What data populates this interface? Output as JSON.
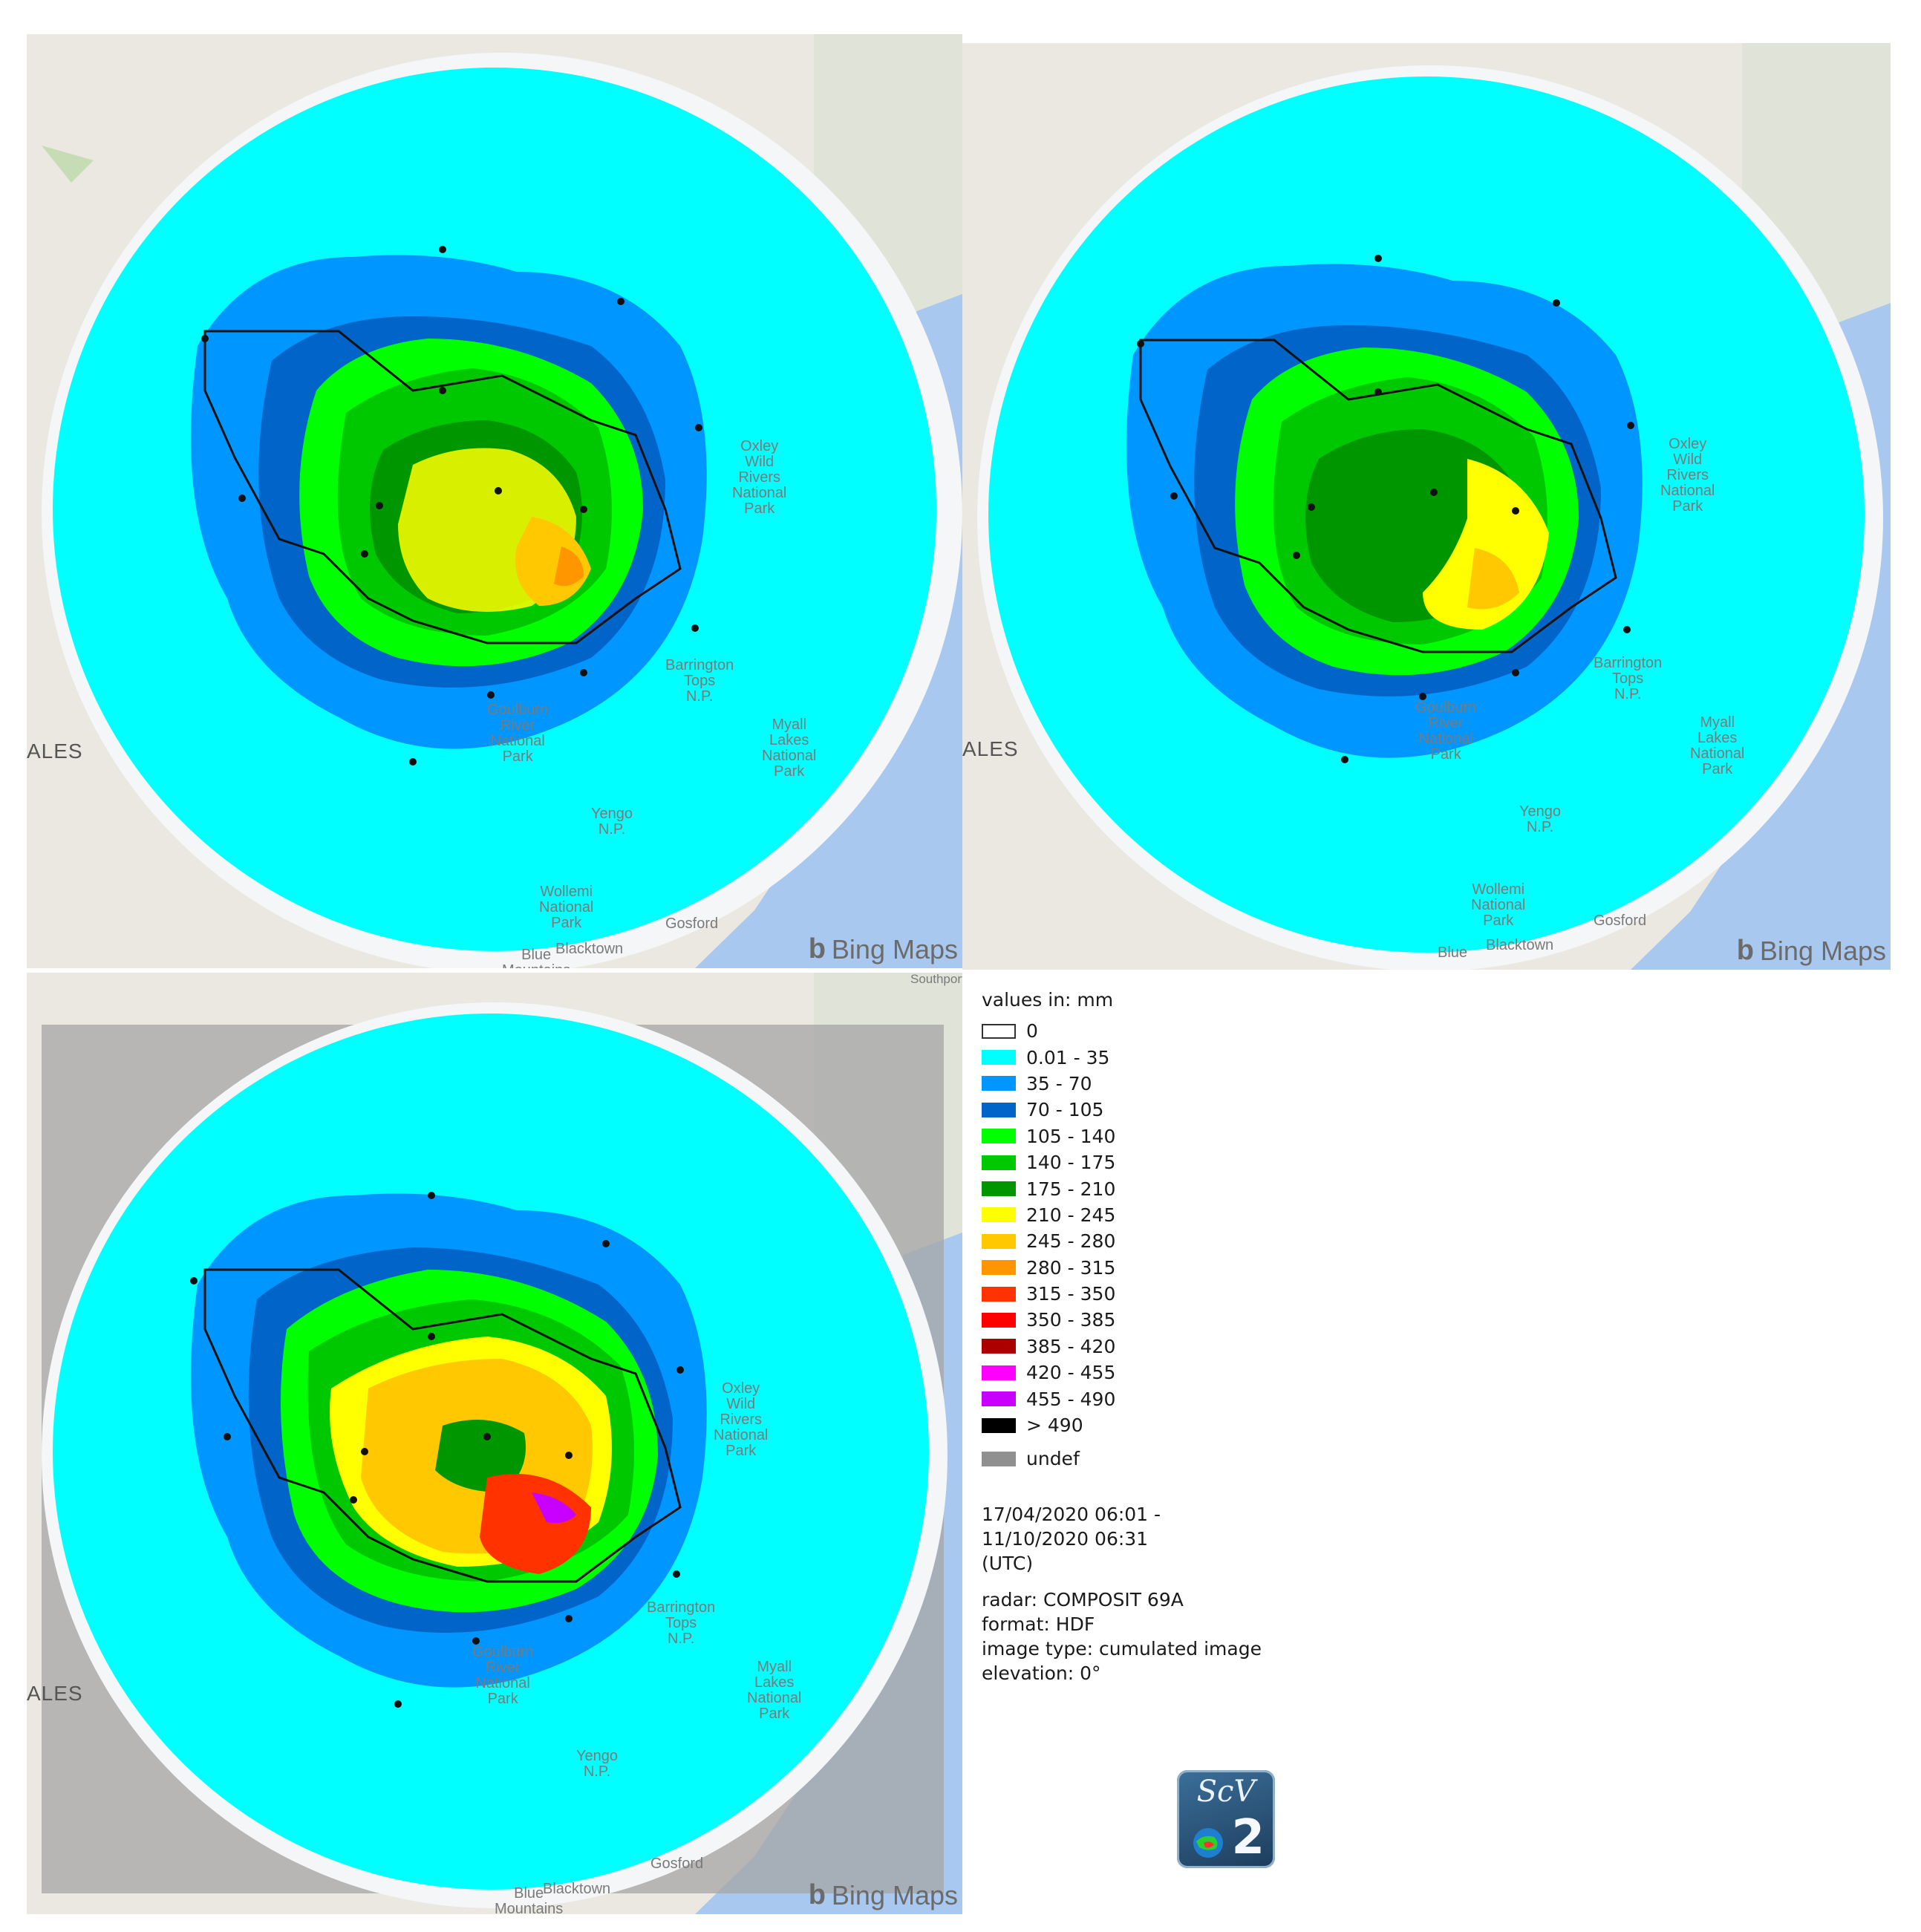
{
  "panels": [
    {
      "id": "panel-1",
      "labels": {
        "state": "ALES",
        "park1": "Oxley\nWild\nRivers\nNational\nPark",
        "park2": "Barrington\nTops\nN.P.",
        "park3": "Goulburn\nRiver\nNational\nPark",
        "park4": "Myall\nLakes\nNational\nPark",
        "park5": "Yengo\nN.P.",
        "park6": "Wollemi\nNational\nPark",
        "town1": "Gosford",
        "town2": "Blacktown",
        "town3": "Blue\nMountains"
      },
      "attribution": "Bing Maps"
    },
    {
      "id": "panel-2",
      "labels": {
        "state": "ALES",
        "park1": "Oxley\nWild\nRivers\nNational\nPark",
        "park2": "Barrington\nTops\nN.P.",
        "park3": "Goulburn\nRiver\nNational\nPark",
        "park4": "Myall\nLakes\nNational\nPark",
        "park5": "Yengo\nN.P.",
        "park6": "Wollemi\nNational\nPark",
        "town1": "Gosford",
        "town2": "Blacktown",
        "town3": "Blue"
      },
      "attribution": "Bing Maps"
    },
    {
      "id": "panel-3",
      "labels": {
        "state": "ALES",
        "park1": "Oxley\nWild\nRivers\nNational\nPark",
        "park2": "Barrington\nTops\nN.P.",
        "park3": "Goulburn\nRiver\nNational\nPark",
        "park4": "Myall\nLakes\nNational\nPark",
        "park5": "Yengo\nN.P.",
        "town1": "Gosford",
        "town2": "Blacktown",
        "town3": "Blue\nMountains",
        "town4": "Southport"
      },
      "attribution": "Bing Maps"
    }
  ],
  "legend": {
    "units": "values in: mm",
    "classes": [
      {
        "label": "0",
        "color": "#ffffff"
      },
      {
        "label": "0.01 - 35",
        "color": "#00ffff"
      },
      {
        "label": "35 - 70",
        "color": "#0096ff"
      },
      {
        "label": "70 - 105",
        "color": "#0064c8"
      },
      {
        "label": "105 - 140",
        "color": "#00ff00"
      },
      {
        "label": "140 - 175",
        "color": "#00c800"
      },
      {
        "label": "175 - 210",
        "color": "#009600"
      },
      {
        "label": "210 - 245",
        "color": "#ffff00"
      },
      {
        "label": "245 - 280",
        "color": "#ffc800"
      },
      {
        "label": "280 - 315",
        "color": "#ff9600"
      },
      {
        "label": "315 - 350",
        "color": "#ff3200"
      },
      {
        "label": "350 - 385",
        "color": "#ff0000"
      },
      {
        "label": "385 - 420",
        "color": "#aa0000"
      },
      {
        "label": "420 - 455",
        "color": "#ff00ff"
      },
      {
        "label": "455 - 490",
        "color": "#c800ff"
      },
      {
        "label": "> 490",
        "color": "#000000"
      }
    ],
    "undef": {
      "label": "undef",
      "color": "#909090"
    },
    "time_line1": "17/04/2020 06:01 -",
    "time_line2": "11/10/2020 06:31",
    "time_line3": "(UTC)",
    "radar": "radar: COMPOSIT 69A",
    "format": "format: HDF",
    "image_type": "image type: cumulated image",
    "elevation": "elevation: 0°"
  },
  "logo": {
    "text": "ScV",
    "number": "2"
  }
}
